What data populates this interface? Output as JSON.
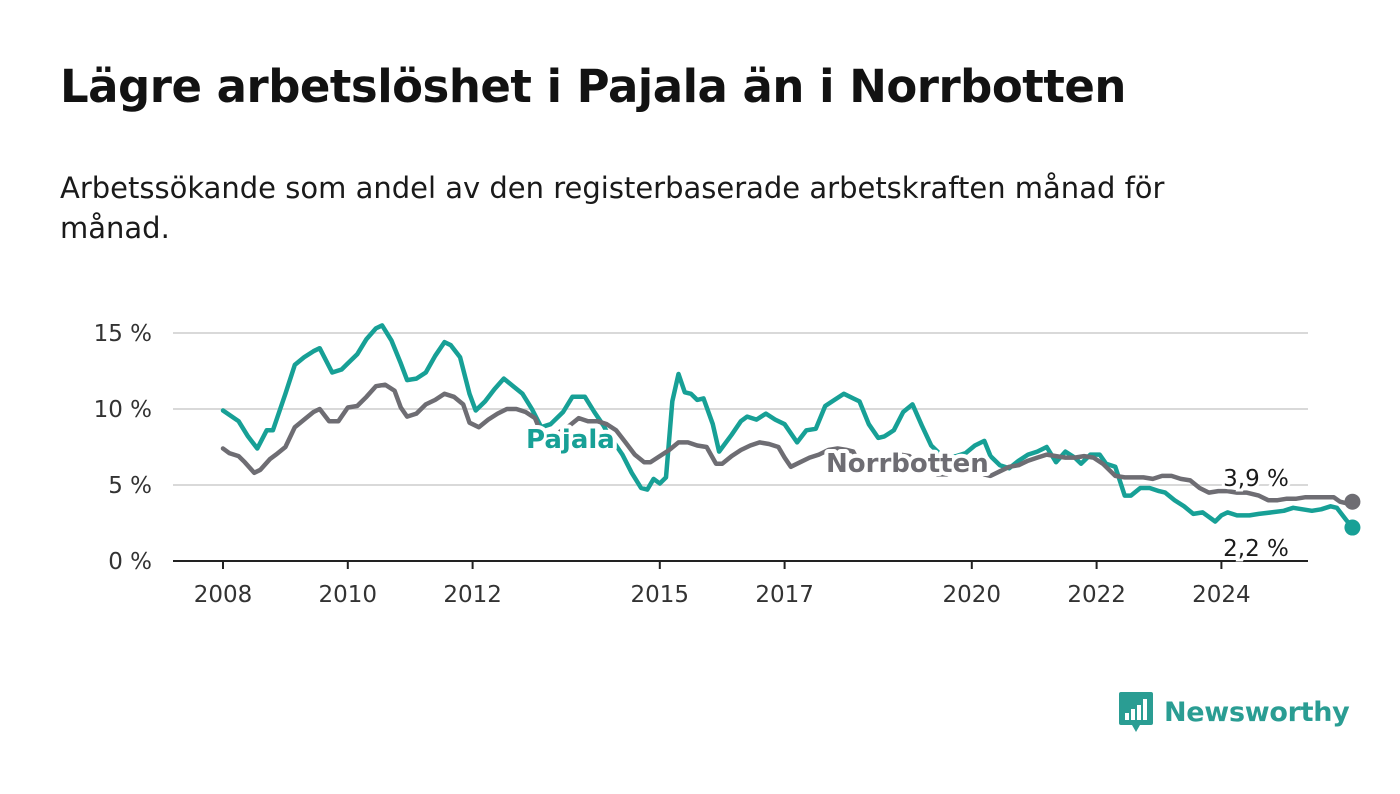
{
  "title": "Lägre arbetslöshet i Pajala än i Norrbotten",
  "subtitle": "Arbetssökande som andel av den registerbaserade arbetskraften månad för månad.",
  "brand": {
    "name": "Newsworthy",
    "icon": "bar-chart-speech-bubble-icon",
    "color": "#2a9d93"
  },
  "chart_data": {
    "type": "line",
    "y_unit": "%",
    "ylim": [
      0,
      16
    ],
    "yticks": [
      {
        "value": 0,
        "label": "0 %"
      },
      {
        "value": 5,
        "label": "5 %"
      },
      {
        "value": 10,
        "label": "10 %"
      },
      {
        "value": 15,
        "label": "15 %"
      }
    ],
    "xlim": [
      2007.2,
      2025.7
    ],
    "xticks": [
      {
        "value": 2008,
        "label": "2008"
      },
      {
        "value": 2010,
        "label": "2010"
      },
      {
        "value": 2012,
        "label": "2012"
      },
      {
        "value": 2015,
        "label": "2015"
      },
      {
        "value": 2017,
        "label": "2017"
      },
      {
        "value": 2020,
        "label": "2020"
      },
      {
        "value": 2022,
        "label": "2022"
      },
      {
        "value": 2024,
        "label": "2024"
      }
    ],
    "grid": true,
    "legend": "inline labels",
    "series": [
      {
        "name": "Pajala",
        "color": "#17a096",
        "end_label": "2,2 %",
        "points": [
          [
            2008.0,
            9.9
          ],
          [
            2008.25,
            9.2
          ],
          [
            2008.4,
            8.2
          ],
          [
            2008.55,
            7.4
          ],
          [
            2008.7,
            8.6
          ],
          [
            2008.8,
            8.6
          ],
          [
            2009.0,
            11.0
          ],
          [
            2009.15,
            12.9
          ],
          [
            2009.3,
            13.4
          ],
          [
            2009.45,
            13.8
          ],
          [
            2009.55,
            14.0
          ],
          [
            2009.75,
            12.4
          ],
          [
            2009.9,
            12.6
          ],
          [
            2010.0,
            13.0
          ],
          [
            2010.15,
            13.6
          ],
          [
            2010.3,
            14.6
          ],
          [
            2010.45,
            15.3
          ],
          [
            2010.55,
            15.5
          ],
          [
            2010.7,
            14.5
          ],
          [
            2010.85,
            13.0
          ],
          [
            2010.95,
            11.9
          ],
          [
            2011.1,
            12.0
          ],
          [
            2011.25,
            12.4
          ],
          [
            2011.4,
            13.5
          ],
          [
            2011.55,
            14.4
          ],
          [
            2011.65,
            14.2
          ],
          [
            2011.8,
            13.4
          ],
          [
            2011.95,
            11.0
          ],
          [
            2012.05,
            9.9
          ],
          [
            2012.2,
            10.5
          ],
          [
            2012.35,
            11.3
          ],
          [
            2012.5,
            12.0
          ],
          [
            2012.65,
            11.5
          ],
          [
            2012.8,
            11.0
          ],
          [
            2012.95,
            10.0
          ],
          [
            2013.1,
            8.8
          ],
          [
            2013.25,
            9.0
          ],
          [
            2013.45,
            9.8
          ],
          [
            2013.6,
            10.8
          ],
          [
            2013.8,
            10.8
          ],
          [
            2013.95,
            9.8
          ],
          [
            2014.1,
            8.9
          ],
          [
            2014.15,
            8.5
          ],
          [
            2014.25,
            7.9
          ],
          [
            2014.4,
            7.0
          ],
          [
            2014.55,
            5.8
          ],
          [
            2014.7,
            4.8
          ],
          [
            2014.8,
            4.7
          ],
          [
            2014.9,
            5.4
          ],
          [
            2015.0,
            5.1
          ],
          [
            2015.1,
            5.5
          ],
          [
            2015.2,
            10.5
          ],
          [
            2015.3,
            12.3
          ],
          [
            2015.4,
            11.1
          ],
          [
            2015.5,
            11.0
          ],
          [
            2015.6,
            10.6
          ],
          [
            2015.7,
            10.7
          ],
          [
            2015.85,
            9.0
          ],
          [
            2015.95,
            7.2
          ],
          [
            2016.15,
            8.3
          ],
          [
            2016.3,
            9.2
          ],
          [
            2016.4,
            9.5
          ],
          [
            2016.55,
            9.3
          ],
          [
            2016.7,
            9.7
          ],
          [
            2016.85,
            9.3
          ],
          [
            2017.0,
            9.0
          ],
          [
            2017.2,
            7.8
          ],
          [
            2017.35,
            8.6
          ],
          [
            2017.5,
            8.7
          ],
          [
            2017.65,
            10.2
          ],
          [
            2017.8,
            10.6
          ],
          [
            2017.95,
            11.0
          ],
          [
            2018.1,
            10.7
          ],
          [
            2018.2,
            10.5
          ],
          [
            2018.35,
            9.0
          ],
          [
            2018.5,
            8.1
          ],
          [
            2018.6,
            8.2
          ],
          [
            2018.75,
            8.6
          ],
          [
            2018.9,
            9.8
          ],
          [
            2019.05,
            10.3
          ],
          [
            2019.2,
            8.9
          ],
          [
            2019.35,
            7.6
          ],
          [
            2019.55,
            6.8
          ],
          [
            2019.75,
            6.9
          ],
          [
            2019.9,
            7.1
          ],
          [
            2020.05,
            7.6
          ],
          [
            2020.2,
            7.9
          ],
          [
            2020.3,
            6.9
          ],
          [
            2020.45,
            6.3
          ],
          [
            2020.6,
            6.1
          ],
          [
            2020.75,
            6.6
          ],
          [
            2020.9,
            7.0
          ],
          [
            2021.05,
            7.2
          ],
          [
            2021.2,
            7.5
          ],
          [
            2021.35,
            6.5
          ],
          [
            2021.5,
            7.2
          ],
          [
            2021.65,
            6.8
          ],
          [
            2021.75,
            6.4
          ],
          [
            2021.9,
            7.0
          ],
          [
            2022.05,
            7.0
          ],
          [
            2022.15,
            6.4
          ],
          [
            2022.3,
            6.2
          ],
          [
            2022.45,
            4.3
          ],
          [
            2022.55,
            4.3
          ],
          [
            2022.7,
            4.8
          ],
          [
            2022.85,
            4.8
          ],
          [
            2023.0,
            4.6
          ],
          [
            2023.1,
            4.5
          ],
          [
            2023.25,
            4.0
          ],
          [
            2023.4,
            3.6
          ],
          [
            2023.55,
            3.1
          ],
          [
            2023.7,
            3.2
          ],
          [
            2023.8,
            2.9
          ],
          [
            2023.9,
            2.6
          ],
          [
            2024.0,
            3.0
          ],
          [
            2024.1,
            3.2
          ],
          [
            2024.25,
            3.0
          ],
          [
            2024.45,
            3.0
          ],
          [
            2024.6,
            3.1
          ],
          [
            2024.8,
            3.2
          ],
          [
            2025.0,
            3.3
          ],
          [
            2025.15,
            3.5
          ],
          [
            2025.3,
            3.4
          ],
          [
            2025.45,
            3.3
          ],
          [
            2025.6,
            3.4
          ],
          [
            2025.75,
            3.6
          ],
          [
            2025.85,
            3.5
          ],
          [
            2026.0,
            2.7
          ],
          [
            2026.1,
            2.2
          ]
        ]
      },
      {
        "name": "Norrbotten",
        "color": "#6e6d73",
        "end_label": "3,9 %",
        "points": [
          [
            2008.0,
            7.4
          ],
          [
            2008.1,
            7.1
          ],
          [
            2008.25,
            6.9
          ],
          [
            2008.35,
            6.5
          ],
          [
            2008.5,
            5.8
          ],
          [
            2008.6,
            6.0
          ],
          [
            2008.75,
            6.7
          ],
          [
            2008.85,
            7.0
          ],
          [
            2009.0,
            7.5
          ],
          [
            2009.15,
            8.8
          ],
          [
            2009.3,
            9.3
          ],
          [
            2009.45,
            9.8
          ],
          [
            2009.55,
            10.0
          ],
          [
            2009.7,
            9.2
          ],
          [
            2009.85,
            9.2
          ],
          [
            2010.0,
            10.1
          ],
          [
            2010.15,
            10.2
          ],
          [
            2010.3,
            10.8
          ],
          [
            2010.45,
            11.5
          ],
          [
            2010.6,
            11.6
          ],
          [
            2010.75,
            11.2
          ],
          [
            2010.85,
            10.1
          ],
          [
            2010.95,
            9.5
          ],
          [
            2011.1,
            9.7
          ],
          [
            2011.25,
            10.3
          ],
          [
            2011.4,
            10.6
          ],
          [
            2011.55,
            11.0
          ],
          [
            2011.7,
            10.8
          ],
          [
            2011.85,
            10.3
          ],
          [
            2011.95,
            9.1
          ],
          [
            2012.1,
            8.8
          ],
          [
            2012.25,
            9.3
          ],
          [
            2012.4,
            9.7
          ],
          [
            2012.55,
            10.0
          ],
          [
            2012.7,
            10.0
          ],
          [
            2012.85,
            9.8
          ],
          [
            2013.0,
            9.4
          ],
          [
            2013.1,
            8.4
          ],
          [
            2013.25,
            8.0
          ],
          [
            2013.4,
            8.5
          ],
          [
            2013.55,
            8.9
          ],
          [
            2013.7,
            9.4
          ],
          [
            2013.85,
            9.2
          ],
          [
            2014.0,
            9.2
          ],
          [
            2014.15,
            9.0
          ],
          [
            2014.3,
            8.6
          ],
          [
            2014.45,
            7.8
          ],
          [
            2014.6,
            7.0
          ],
          [
            2014.75,
            6.5
          ],
          [
            2014.85,
            6.5
          ],
          [
            2015.0,
            6.9
          ],
          [
            2015.15,
            7.3
          ],
          [
            2015.3,
            7.8
          ],
          [
            2015.45,
            7.8
          ],
          [
            2015.6,
            7.6
          ],
          [
            2015.75,
            7.5
          ],
          [
            2015.9,
            6.4
          ],
          [
            2016.0,
            6.4
          ],
          [
            2016.15,
            6.9
          ],
          [
            2016.3,
            7.3
          ],
          [
            2016.45,
            7.6
          ],
          [
            2016.6,
            7.8
          ],
          [
            2016.75,
            7.7
          ],
          [
            2016.9,
            7.5
          ],
          [
            2017.0,
            6.8
          ],
          [
            2017.1,
            6.2
          ],
          [
            2017.25,
            6.5
          ],
          [
            2017.4,
            6.8
          ],
          [
            2017.55,
            7.0
          ],
          [
            2017.7,
            7.3
          ],
          [
            2017.85,
            7.4
          ],
          [
            2018.0,
            7.3
          ],
          [
            2018.1,
            7.2
          ],
          [
            2018.25,
            6.0
          ],
          [
            2018.4,
            6.3
          ],
          [
            2018.55,
            6.6
          ],
          [
            2018.7,
            6.9
          ],
          [
            2018.85,
            7.0
          ],
          [
            2019.0,
            6.9
          ],
          [
            2019.15,
            6.2
          ],
          [
            2019.3,
            6.1
          ],
          [
            2019.45,
            5.7
          ],
          [
            2019.6,
            5.7
          ],
          [
            2019.75,
            6.1
          ],
          [
            2019.9,
            6.3
          ],
          [
            2020.05,
            6.0
          ],
          [
            2020.2,
            5.7
          ],
          [
            2020.3,
            5.6
          ],
          [
            2020.45,
            5.9
          ],
          [
            2020.6,
            6.2
          ],
          [
            2020.75,
            6.3
          ],
          [
            2020.9,
            6.6
          ],
          [
            2021.05,
            6.8
          ],
          [
            2021.2,
            7.0
          ],
          [
            2021.35,
            6.9
          ],
          [
            2021.5,
            6.8
          ],
          [
            2021.65,
            6.8
          ],
          [
            2021.8,
            6.9
          ],
          [
            2021.95,
            6.8
          ],
          [
            2022.1,
            6.4
          ],
          [
            2022.3,
            5.6
          ],
          [
            2022.45,
            5.5
          ],
          [
            2022.6,
            5.5
          ],
          [
            2022.75,
            5.5
          ],
          [
            2022.9,
            5.4
          ],
          [
            2023.05,
            5.6
          ],
          [
            2023.2,
            5.6
          ],
          [
            2023.35,
            5.4
          ],
          [
            2023.5,
            5.3
          ],
          [
            2023.65,
            4.8
          ],
          [
            2023.8,
            4.5
          ],
          [
            2023.95,
            4.6
          ],
          [
            2024.1,
            4.6
          ],
          [
            2024.25,
            4.5
          ],
          [
            2024.4,
            4.5
          ],
          [
            2024.6,
            4.3
          ],
          [
            2024.75,
            4.0
          ],
          [
            2024.9,
            4.0
          ],
          [
            2025.05,
            4.1
          ],
          [
            2025.2,
            4.1
          ],
          [
            2025.35,
            4.2
          ],
          [
            2025.5,
            4.2
          ],
          [
            2025.65,
            4.2
          ],
          [
            2025.8,
            4.2
          ],
          [
            2025.9,
            3.9
          ],
          [
            2026.0,
            3.8
          ],
          [
            2026.1,
            3.9
          ]
        ]
      }
    ]
  }
}
